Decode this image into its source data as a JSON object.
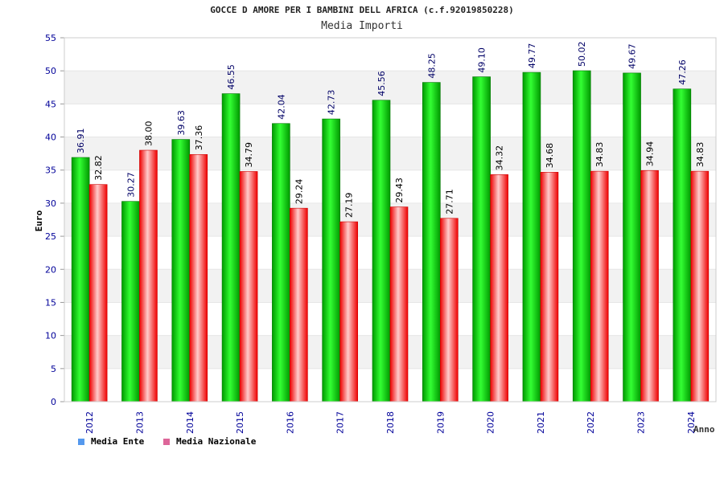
{
  "chart_data": {
    "type": "bar",
    "title": "GOCCE D AMORE PER I BAMBINI DELL AFRICA (c.f.92019850228)",
    "subtitle": "Media Importi",
    "xlabel": "Anno",
    "ylabel": "Euro",
    "ylim": [
      0,
      55
    ],
    "yticks": [
      0,
      5,
      10,
      15,
      20,
      25,
      30,
      35,
      40,
      45,
      50,
      55
    ],
    "categories": [
      "2012",
      "2013",
      "2014",
      "2015",
      "2016",
      "2017",
      "2018",
      "2019",
      "2020",
      "2021",
      "2022",
      "2023",
      "2024"
    ],
    "series": [
      {
        "name": "Media Ente",
        "values": [
          36.91,
          30.27,
          39.63,
          46.55,
          42.04,
          42.73,
          45.56,
          48.25,
          49.1,
          49.77,
          50.02,
          49.67,
          47.26
        ],
        "labels": [
          "36.91",
          "30.27",
          "39.63",
          "46.55",
          "42.04",
          "42.73",
          "45.56",
          "48.25",
          "49.10",
          "49.77",
          "50.02",
          "49.67",
          "47.26"
        ]
      },
      {
        "name": "Media Nazionale",
        "values": [
          32.82,
          38.0,
          37.36,
          34.79,
          29.24,
          27.19,
          29.43,
          27.71,
          34.32,
          34.68,
          34.83,
          34.94,
          34.83
        ],
        "labels": [
          "32.82",
          "38.00",
          "37.36",
          "34.79",
          "29.24",
          "27.19",
          "29.43",
          "27.71",
          "34.32",
          "34.68",
          "34.83",
          "34.94",
          "34.83"
        ]
      }
    ],
    "grid": true,
    "legend_position": "bottom-left",
    "colors": {
      "ente_bar": "#00cc00",
      "nazionale_bar": "#ff2020",
      "ente_legend": "#5599ee",
      "nazionale_legend": "#dd6699",
      "axis_text": "#000099",
      "band_fill": "#f2f2f2"
    }
  }
}
